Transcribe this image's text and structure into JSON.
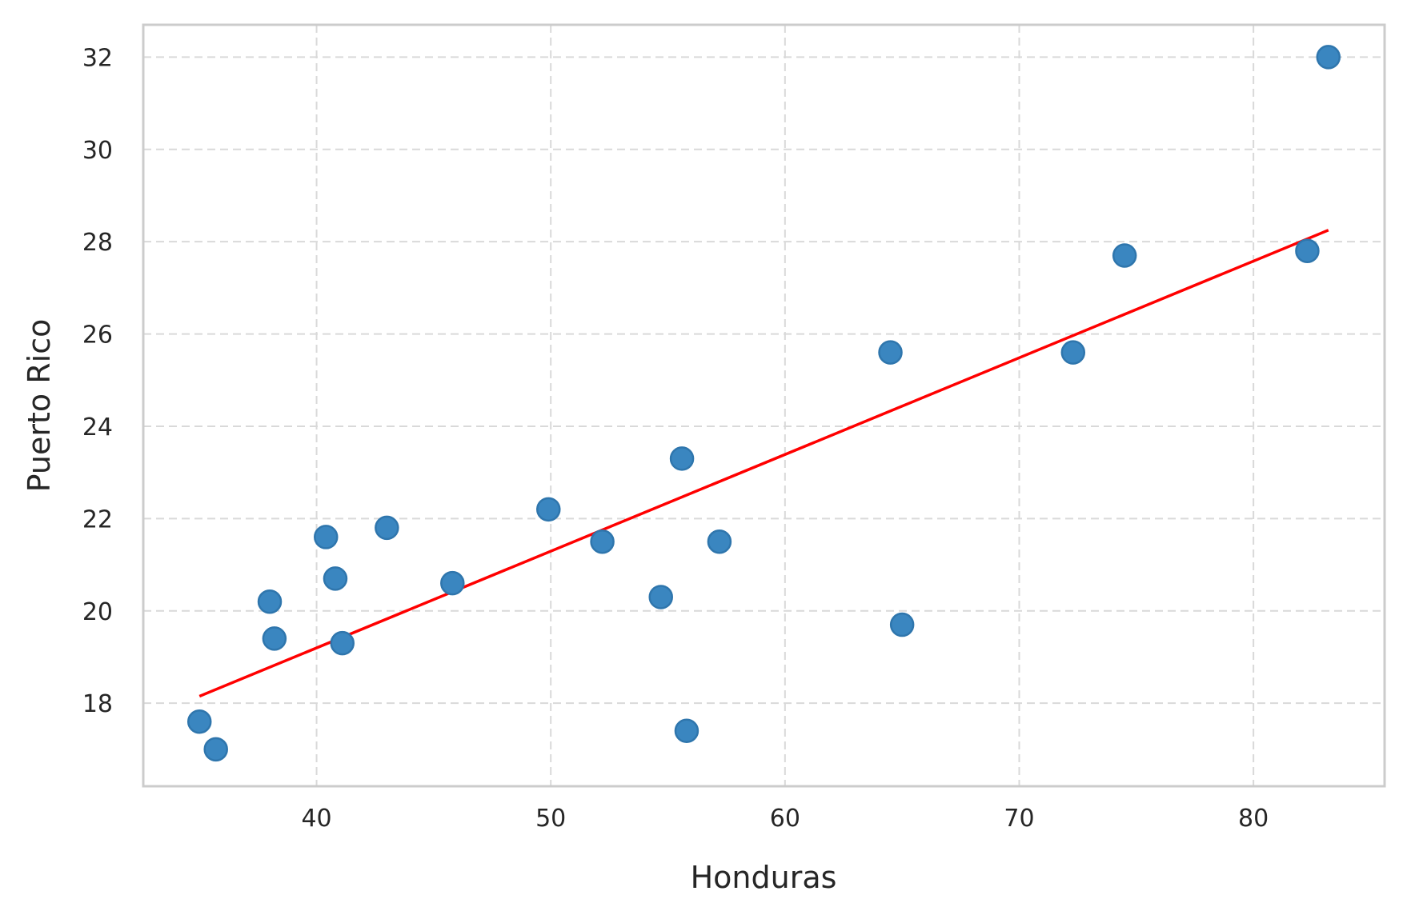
{
  "chart_data": {
    "type": "scatter",
    "xlabel": "Honduras",
    "ylabel": "Puerto Rico",
    "xlim": [
      32.6,
      85.6
    ],
    "ylim": [
      16.2,
      32.7
    ],
    "x_ticks": [
      "40",
      "50",
      "60",
      "70",
      "80"
    ],
    "y_ticks": [
      "18",
      "20",
      "22",
      "24",
      "26",
      "28",
      "30",
      "32"
    ],
    "grid": true,
    "points": [
      {
        "x": 35.0,
        "y": 17.6
      },
      {
        "x": 35.7,
        "y": 17.0
      },
      {
        "x": 38.0,
        "y": 20.2
      },
      {
        "x": 38.2,
        "y": 19.4
      },
      {
        "x": 40.4,
        "y": 21.6
      },
      {
        "x": 40.8,
        "y": 20.7
      },
      {
        "x": 41.1,
        "y": 19.3
      },
      {
        "x": 43.0,
        "y": 21.8
      },
      {
        "x": 45.8,
        "y": 20.6
      },
      {
        "x": 49.9,
        "y": 22.2
      },
      {
        "x": 52.2,
        "y": 21.5
      },
      {
        "x": 54.7,
        "y": 20.3
      },
      {
        "x": 55.6,
        "y": 23.3
      },
      {
        "x": 55.8,
        "y": 17.4
      },
      {
        "x": 57.2,
        "y": 21.5
      },
      {
        "x": 64.5,
        "y": 25.6
      },
      {
        "x": 65.0,
        "y": 19.7
      },
      {
        "x": 72.3,
        "y": 25.6
      },
      {
        "x": 74.5,
        "y": 27.7
      },
      {
        "x": 82.3,
        "y": 27.8
      },
      {
        "x": 83.2,
        "y": 32.0
      }
    ],
    "fit_line": {
      "x": [
        35.0,
        83.2
      ],
      "y": [
        18.15,
        28.25
      ],
      "color": "#ff0000"
    },
    "point_color": "#3a86c0"
  }
}
